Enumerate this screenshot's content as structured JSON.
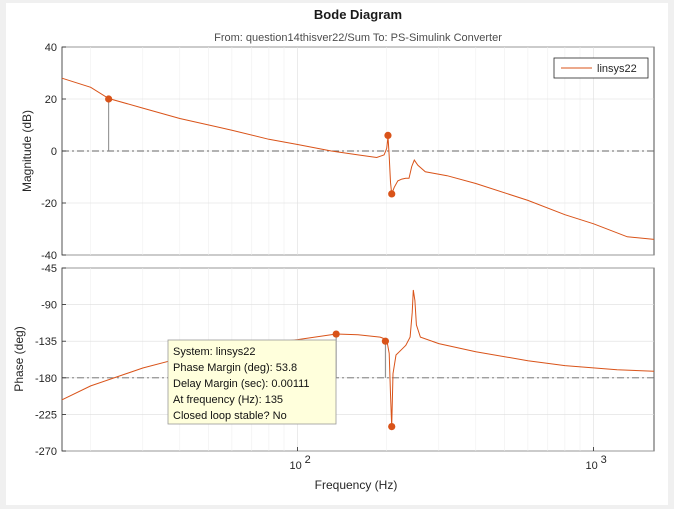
{
  "chart_data": {
    "type": "line",
    "title": "Bode Diagram",
    "subtitle": "From: question14thisver22/Sum  To: PS-Simulink Converter",
    "xlabel": "Frequency  (Hz)",
    "x_scale": "log",
    "xlim": [
      16,
      1600
    ],
    "x_ticks": [
      100,
      1000
    ],
    "x_tick_labels": [
      "10",
      "10"
    ],
    "x_tick_exponents": [
      "2",
      "3"
    ],
    "legend": {
      "position": "top-right",
      "entries": [
        "linsys22"
      ]
    },
    "series_color": "#d95319",
    "marker_color": "#d95319",
    "reference_line_color": "#666666",
    "plots": [
      {
        "id": "magnitude",
        "ylabel": "Magnitude (dB)",
        "ylim": [
          -40,
          40
        ],
        "yticks": [
          -40,
          -20,
          0,
          20,
          40
        ],
        "ytick_labels": [
          "-40",
          "-20",
          "0",
          "20",
          "40"
        ],
        "reference_line": 0,
        "series": [
          {
            "name": "linsys22",
            "points": [
              [
                16,
                28
              ],
              [
                20,
                24.5
              ],
              [
                23,
                20.2
              ],
              [
                30,
                16.5
              ],
              [
                40,
                12.5
              ],
              [
                60,
                8
              ],
              [
                80,
                4.5
              ],
              [
                100,
                2.5
              ],
              [
                130,
                0
              ],
              [
                160,
                -1.5
              ],
              [
                185,
                -2.5
              ],
              [
                196,
                -1.5
              ],
              [
                200,
                1
              ],
              [
                202,
                5.5
              ],
              [
                204,
                -2
              ],
              [
                206,
                -12
              ],
              [
                208,
                -16.5
              ],
              [
                212,
                -14
              ],
              [
                218,
                -11.5
              ],
              [
                225,
                -10.8
              ],
              [
                232,
                -10.5
              ],
              [
                238,
                -10.5
              ],
              [
                243,
                -6
              ],
              [
                248,
                -3.5
              ],
              [
                255,
                -5.5
              ],
              [
                270,
                -8
              ],
              [
                320,
                -9.5
              ],
              [
                400,
                -12.5
              ],
              [
                600,
                -19
              ],
              [
                800,
                -24.5
              ],
              [
                1000,
                -28
              ],
              [
                1300,
                -33
              ],
              [
                1600,
                -34
              ]
            ]
          }
        ],
        "markers": [
          {
            "x": 23,
            "y": 20,
            "stem_to": 0
          },
          {
            "x": 202,
            "y": 6
          },
          {
            "x": 208,
            "y": -16.5
          }
        ]
      },
      {
        "id": "phase",
        "ylabel": "Phase (deg)",
        "ylim": [
          -270,
          -45
        ],
        "yticks": [
          -270,
          -225,
          -180,
          -135,
          -90,
          -45
        ],
        "ytick_labels": [
          "-270",
          "-225",
          "-180",
          "-135",
          "-90",
          "-45"
        ],
        "reference_line": -180,
        "series": [
          {
            "name": "linsys22",
            "points": [
              [
                16,
                -207
              ],
              [
                20,
                -190
              ],
              [
                30,
                -168
              ],
              [
                40,
                -156
              ],
              [
                60,
                -143
              ],
              [
                80,
                -137
              ],
              [
                100,
                -133
              ],
              [
                135,
                -126.2
              ],
              [
                160,
                -127
              ],
              [
                190,
                -130
              ],
              [
                200,
                -133
              ],
              [
                204,
                -150
              ],
              [
                206,
                -200
              ],
              [
                208,
                -240
              ],
              [
                210,
                -175
              ],
              [
                215,
                -152
              ],
              [
                225,
                -145
              ],
              [
                232,
                -140
              ],
              [
                240,
                -130
              ],
              [
                244,
                -100
              ],
              [
                246,
                -72
              ],
              [
                249,
                -85
              ],
              [
                252,
                -115
              ],
              [
                260,
                -130
              ],
              [
                300,
                -138
              ],
              [
                400,
                -148
              ],
              [
                600,
                -159
              ],
              [
                800,
                -165
              ],
              [
                1200,
                -170
              ],
              [
                1600,
                -172
              ]
            ]
          }
        ],
        "markers": [
          {
            "x": 135,
            "y": -126.2,
            "stem_to": -180
          },
          {
            "x": 198,
            "y": -135,
            "stem_to": -180
          },
          {
            "x": 208,
            "y": -240
          }
        ]
      }
    ]
  },
  "datatip": {
    "lines": [
      "System: linsys22",
      "Phase Margin (deg): 53.8",
      "Delay Margin (sec): 0.00111",
      "At frequency (Hz): 135",
      "Closed loop stable? No"
    ],
    "background": "#ffffdc",
    "border": "#999999"
  }
}
